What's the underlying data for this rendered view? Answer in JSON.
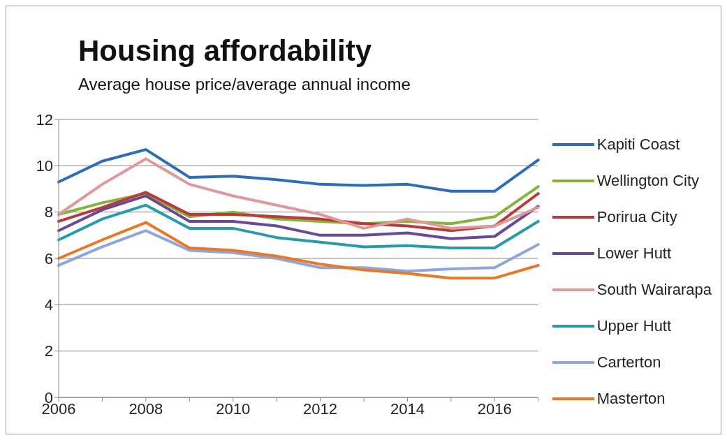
{
  "chart_data": {
    "type": "line",
    "title": "Housing affordability",
    "subtitle": "Average house price/average annual income",
    "categories": [
      "2006",
      null,
      "2008",
      null,
      "2010",
      null,
      "2012",
      null,
      "2014",
      null,
      "2016",
      null
    ],
    "series": [
      {
        "name": "Kapiti Coast",
        "color": "#2e6db4",
        "values": [
          9.3,
          10.2,
          10.7,
          9.5,
          9.55,
          9.4,
          9.2,
          9.15,
          9.2,
          8.9,
          8.9,
          10.25
        ]
      },
      {
        "name": "Wellington City",
        "color": "#86b33c",
        "values": [
          7.9,
          8.4,
          8.8,
          7.8,
          8.0,
          7.7,
          7.6,
          7.5,
          7.6,
          7.5,
          7.8,
          9.1
        ]
      },
      {
        "name": "Porirua City",
        "color": "#b83a3a",
        "values": [
          7.6,
          8.2,
          8.85,
          7.9,
          7.9,
          7.8,
          7.7,
          7.5,
          7.4,
          7.2,
          7.4,
          8.8
        ]
      },
      {
        "name": "Lower Hutt",
        "color": "#6a4a94",
        "values": [
          7.2,
          8.1,
          8.7,
          7.6,
          7.6,
          7.4,
          7.0,
          7.0,
          7.1,
          6.85,
          6.95,
          8.25
        ]
      },
      {
        "name": "South Wairarapa",
        "color": "#e0999a",
        "values": [
          7.9,
          9.2,
          10.3,
          9.2,
          8.7,
          8.3,
          7.9,
          7.3,
          7.7,
          7.3,
          7.4,
          8.2
        ]
      },
      {
        "name": "Upper Hutt",
        "color": "#2a9aab",
        "values": [
          6.8,
          7.7,
          8.3,
          7.3,
          7.3,
          6.9,
          6.7,
          6.5,
          6.55,
          6.45,
          6.45,
          7.6
        ]
      },
      {
        "name": "Carterton",
        "color": "#8fa5dc",
        "values": [
          5.7,
          6.5,
          7.2,
          6.35,
          6.25,
          6.0,
          5.6,
          5.6,
          5.45,
          5.55,
          5.6,
          6.6
        ]
      },
      {
        "name": "Masterton",
        "color": "#e6792a",
        "values": [
          6.0,
          6.8,
          7.55,
          6.45,
          6.35,
          6.1,
          5.75,
          5.5,
          5.35,
          5.15,
          5.15,
          5.7
        ]
      }
    ],
    "ylim": [
      0,
      12
    ],
    "yticks": [
      0,
      2,
      4,
      6,
      8,
      10,
      12
    ],
    "grid": "y",
    "legend": "right",
    "marker": "none"
  }
}
